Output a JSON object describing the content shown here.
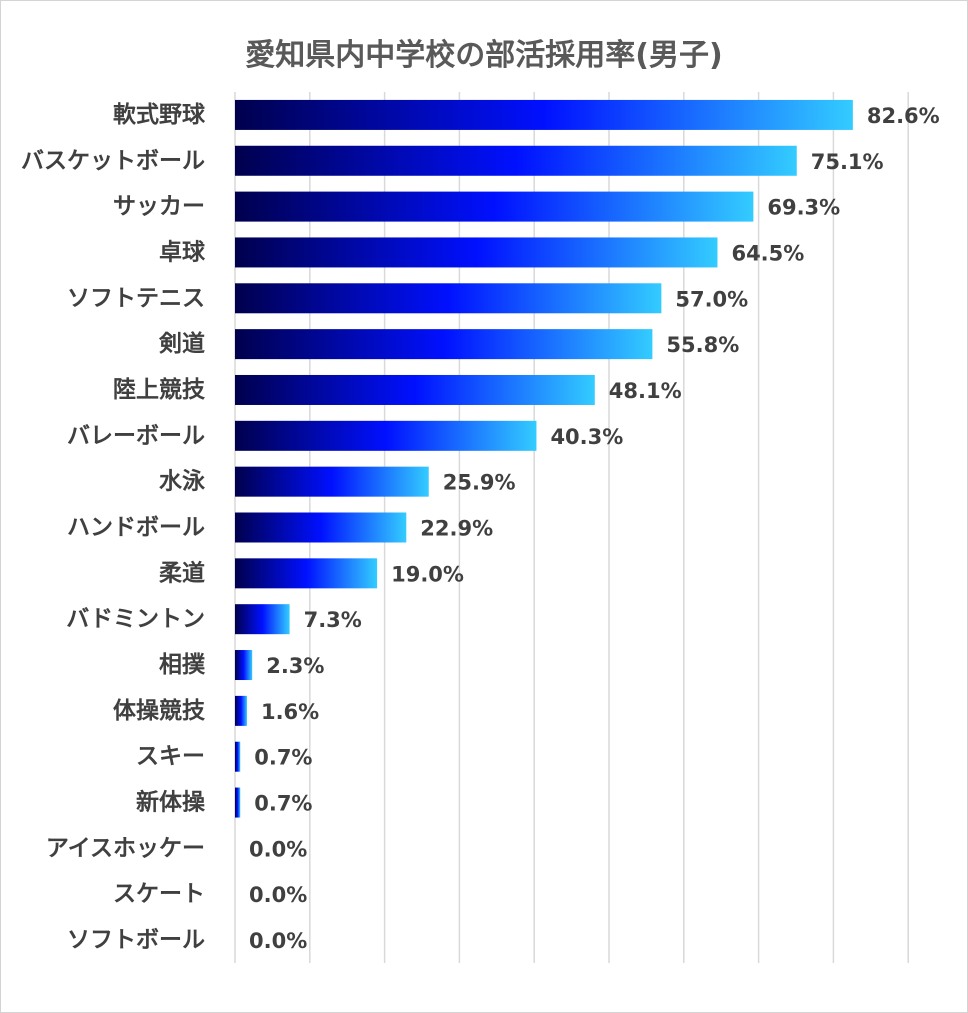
{
  "chart_data": {
    "type": "bar",
    "orientation": "horizontal",
    "title": "愛知県内中学校の部活採用率(男子)",
    "xlabel": "",
    "ylabel": "",
    "xlim": [
      0,
      90
    ],
    "grid": true,
    "legend": "none",
    "categories": [
      "軟式野球",
      "バスケットボール",
      "サッカー",
      "卓球",
      "ソフトテニス",
      "剣道",
      "陸上競技",
      "バレーボール",
      "水泳",
      "ハンドボール",
      "柔道",
      "バドミントン",
      "相撲",
      "体操競技",
      "スキー",
      "新体操",
      "アイスホッケー",
      "スケート",
      "ソフトボール"
    ],
    "values": [
      82.6,
      75.1,
      69.3,
      64.5,
      57.0,
      55.8,
      48.1,
      40.3,
      25.9,
      22.9,
      19.0,
      7.3,
      2.3,
      1.6,
      0.7,
      0.7,
      0.0,
      0.0,
      0.0
    ],
    "value_labels": [
      "82.6%",
      "75.1%",
      "69.3%",
      "64.5%",
      "57.0%",
      "55.8%",
      "48.1%",
      "40.3%",
      "25.9%",
      "22.9%",
      "19.0%",
      "7.3%",
      "2.3%",
      "1.6%",
      "0.7%",
      "0.7%",
      "0.0%",
      "0.0%",
      "0.0%"
    ],
    "colors": {
      "gradient_start": "#00004d",
      "gradient_mid": "#0010ff",
      "gradient_end": "#33ccff",
      "gridline": "#d9d9d9",
      "text": "#404040"
    }
  }
}
